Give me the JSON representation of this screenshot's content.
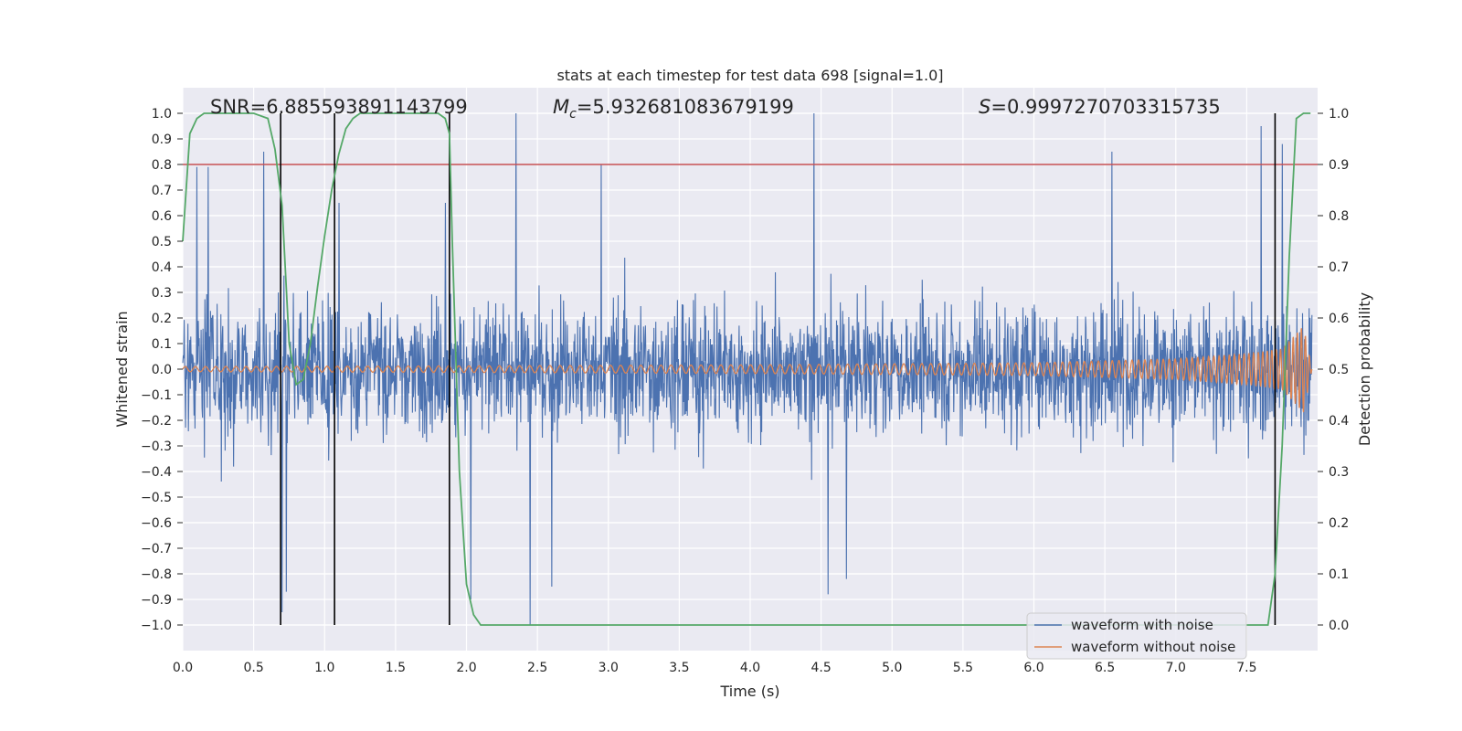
{
  "chart_data": {
    "type": "line",
    "title": "stats at each timestep for test data 698 [signal=1.0]",
    "xlabel": "Time (s)",
    "ylabel": "Whitened strain",
    "y2label": "Detection probability",
    "xlim": [
      0.0,
      8.0
    ],
    "ylim": [
      -1.1,
      1.1
    ],
    "y2lim": [
      -0.05,
      1.05
    ],
    "xticks": [
      "0.0",
      "0.5",
      "1.0",
      "1.5",
      "2.0",
      "2.5",
      "3.0",
      "3.5",
      "4.0",
      "4.5",
      "5.0",
      "5.5",
      "6.0",
      "6.5",
      "7.0",
      "7.5"
    ],
    "yticks": [
      "1.0",
      "0.9",
      "0.8",
      "0.7",
      "0.6",
      "0.5",
      "0.4",
      "0.3",
      "0.2",
      "0.1",
      "0.0",
      "-0.1",
      "-0.2",
      "-0.3",
      "-0.4",
      "-0.5",
      "-0.6",
      "-0.7",
      "-0.8",
      "-0.9",
      "-1.0"
    ],
    "y2ticks": [
      "1.0",
      "0.9",
      "0.8",
      "0.7",
      "0.6",
      "0.5",
      "0.4",
      "0.3",
      "0.2",
      "0.1",
      "0.0"
    ],
    "grid": true,
    "legend_position": "lower-right",
    "annotations": {
      "snr": "SNR=6.885593891143799",
      "mc_symbol": "M",
      "mc_sub": "c",
      "mc_value": "=5.932681083679199",
      "s_symbol": "S",
      "s_value": "=0.9997270703315735"
    },
    "threshold": {
      "y2": 0.9,
      "color": "#c44e52"
    },
    "vertical_lines": [
      0.69,
      1.07,
      1.88,
      7.7
    ],
    "series": [
      {
        "name": "waveform with noise",
        "color": "#4c72b0",
        "axis": "left",
        "kind": "noise",
        "amplitude_range": [
          -1.0,
          1.0
        ],
        "peaks": [
          [
            0.1,
            0.79
          ],
          [
            0.18,
            0.79
          ],
          [
            0.57,
            0.85
          ],
          [
            0.7,
            0.82
          ],
          [
            1.1,
            0.65
          ],
          [
            1.85,
            0.65
          ],
          [
            2.35,
            1.0
          ],
          [
            2.95,
            0.8
          ],
          [
            4.45,
            1.0
          ],
          [
            6.55,
            0.85
          ],
          [
            7.6,
            0.95
          ],
          [
            7.75,
            0.88
          ]
        ],
        "troughs": [
          [
            0.7,
            -0.95
          ],
          [
            0.73,
            -0.87
          ],
          [
            2.03,
            -0.9
          ],
          [
            2.45,
            -1.0
          ],
          [
            2.6,
            -0.85
          ],
          [
            4.55,
            -0.88
          ],
          [
            4.68,
            -0.82
          ]
        ]
      },
      {
        "name": "waveform without noise",
        "color": "#dd8452",
        "axis": "left",
        "kind": "chirp",
        "envelope": [
          [
            0.0,
            0.01
          ],
          [
            2.0,
            0.013
          ],
          [
            4.0,
            0.017
          ],
          [
            6.0,
            0.025
          ],
          [
            7.0,
            0.04
          ],
          [
            7.5,
            0.06
          ],
          [
            7.75,
            0.08
          ],
          [
            7.9,
            0.17
          ],
          [
            7.96,
            0.0
          ]
        ]
      },
      {
        "name": "detection probability",
        "color": "#55a868",
        "axis": "right",
        "kind": "line",
        "x": [
          0.0,
          0.05,
          0.1,
          0.15,
          0.2,
          0.3,
          0.4,
          0.5,
          0.6,
          0.65,
          0.7,
          0.75,
          0.8,
          0.85,
          0.9,
          0.95,
          1.0,
          1.05,
          1.1,
          1.15,
          1.2,
          1.25,
          1.3,
          1.4,
          1.5,
          1.6,
          1.7,
          1.8,
          1.85,
          1.88,
          1.9,
          1.95,
          2.0,
          2.05,
          2.1,
          2.15,
          3.0,
          4.0,
          5.0,
          6.0,
          7.0,
          7.5,
          7.65,
          7.7,
          7.75,
          7.8,
          7.85,
          7.9,
          7.95
        ],
        "y": [
          0.75,
          0.96,
          0.99,
          1.0,
          1.0,
          1.0,
          1.0,
          1.0,
          0.99,
          0.93,
          0.82,
          0.55,
          0.47,
          0.48,
          0.55,
          0.66,
          0.76,
          0.85,
          0.92,
          0.97,
          0.99,
          1.0,
          1.0,
          1.0,
          1.0,
          1.0,
          1.0,
          1.0,
          0.99,
          0.96,
          0.75,
          0.3,
          0.08,
          0.02,
          0.0,
          0.0,
          0.0,
          0.0,
          0.0,
          0.0,
          0.0,
          0.0,
          0.0,
          0.1,
          0.35,
          0.72,
          0.99,
          1.0,
          1.0
        ]
      }
    ]
  }
}
